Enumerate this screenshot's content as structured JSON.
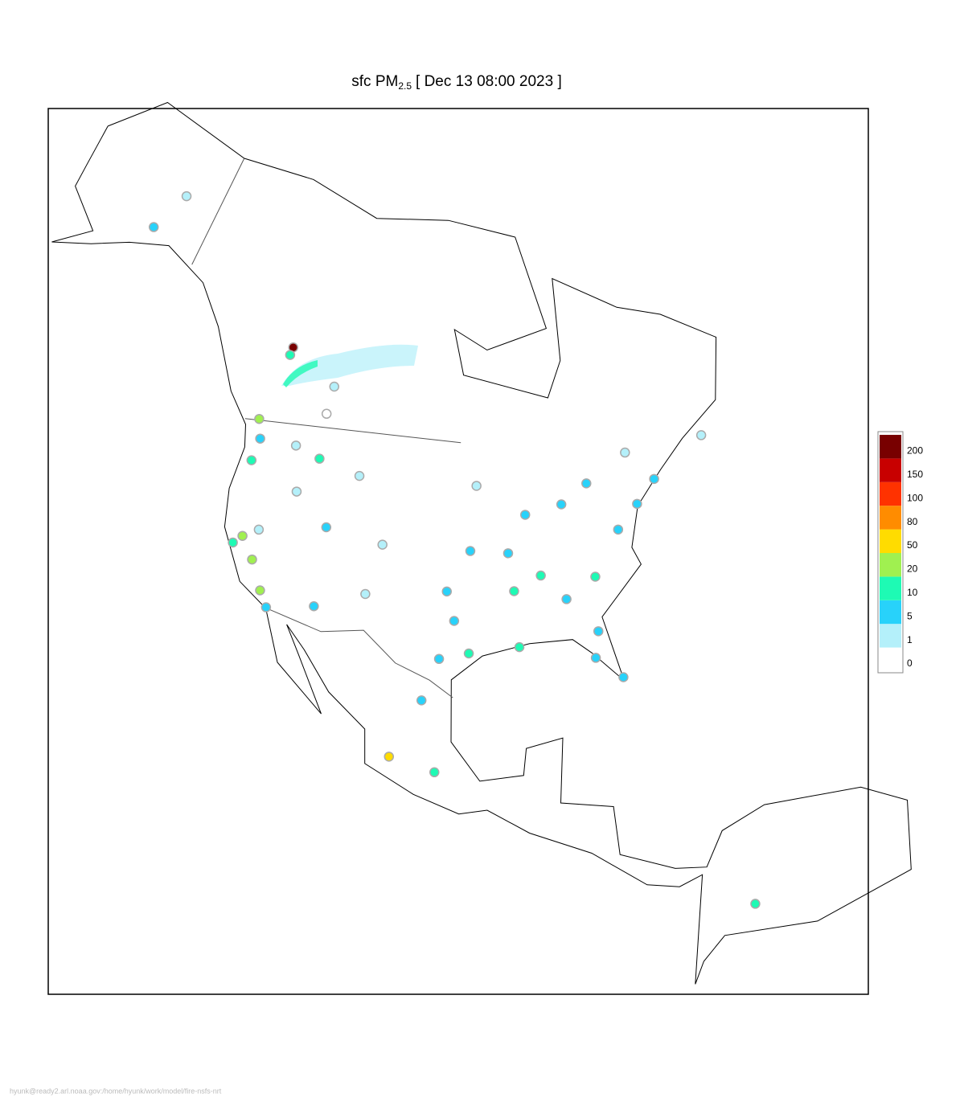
{
  "map": {
    "title": {
      "prefix": "sfc PM",
      "subscript": "2.5",
      "suffix": "[ Dec 13 08:00 2023 ]"
    },
    "legend": {
      "levels": [
        0,
        1,
        5,
        10,
        20,
        50,
        80,
        100,
        150,
        200
      ],
      "colors": [
        "#ffffff",
        "#b4f0fa",
        "#28d2fa",
        "#1efab4",
        "#a0f050",
        "#ffdc00",
        "#ff8c00",
        "#ff3200",
        "#c80000",
        "#780000"
      ]
    },
    "stations": [
      {
        "lon": -122.3,
        "lat": 47.6,
        "value": 8
      },
      {
        "lon": -122.7,
        "lat": 45.5,
        "value": 12
      },
      {
        "lon": -122.4,
        "lat": 37.8,
        "value": 18
      },
      {
        "lon": -121.5,
        "lat": 38.6,
        "value": 22
      },
      {
        "lon": -118.2,
        "lat": 34.1,
        "value": 25
      },
      {
        "lon": -117.2,
        "lat": 32.7,
        "value": 8
      },
      {
        "lon": -119.8,
        "lat": 36.7,
        "value": 22
      },
      {
        "lon": -119.8,
        "lat": 39.5,
        "value": 4
      },
      {
        "lon": -116.2,
        "lat": 43.6,
        "value": 4
      },
      {
        "lon": -111.9,
        "lat": 40.8,
        "value": 6
      },
      {
        "lon": -112.1,
        "lat": 33.5,
        "value": 6
      },
      {
        "lon": -105.0,
        "lat": 39.7,
        "value": 3
      },
      {
        "lon": -106.6,
        "lat": 35.1,
        "value": 1.5
      },
      {
        "lon": -117.4,
        "lat": 47.7,
        "value": 3
      },
      {
        "lon": -114.0,
        "lat": 46.9,
        "value": 12
      },
      {
        "lon": -108.5,
        "lat": 45.8,
        "value": 2
      },
      {
        "lon": -114.0,
        "lat": 51.0,
        "value": 0.5
      },
      {
        "lon": -113.5,
        "lat": 53.5,
        "value": 3
      },
      {
        "lon": -123.1,
        "lat": 49.3,
        "value": 20
      },
      {
        "lon": -120.8,
        "lat": 56.2,
        "value": 200
      },
      {
        "lon": -121.0,
        "lat": 55.5,
        "value": 15
      },
      {
        "lon": -96.8,
        "lat": 32.8,
        "value": 7
      },
      {
        "lon": -95.4,
        "lat": 29.8,
        "value": 15
      },
      {
        "lon": -98.5,
        "lat": 29.4,
        "value": 6
      },
      {
        "lon": -90.1,
        "lat": 30.0,
        "value": 14
      },
      {
        "lon": -84.4,
        "lat": 33.7,
        "value": 9
      },
      {
        "lon": -80.2,
        "lat": 25.8,
        "value": 6
      },
      {
        "lon": -82.5,
        "lat": 28.0,
        "value": 7
      },
      {
        "lon": -81.7,
        "lat": 30.3,
        "value": 6
      },
      {
        "lon": -80.8,
        "lat": 35.2,
        "value": 12
      },
      {
        "lon": -77.0,
        "lat": 38.9,
        "value": 7
      },
      {
        "lon": -74.0,
        "lat": 40.7,
        "value": 6
      },
      {
        "lon": -71.1,
        "lat": 42.4,
        "value": 5
      },
      {
        "lon": -87.6,
        "lat": 41.9,
        "value": 7
      },
      {
        "lon": -83.0,
        "lat": 42.3,
        "value": 6
      },
      {
        "lon": -93.3,
        "lat": 45.0,
        "value": 2
      },
      {
        "lon": -94.6,
        "lat": 39.1,
        "value": 8
      },
      {
        "lon": -90.2,
        "lat": 38.6,
        "value": 8
      },
      {
        "lon": -90.0,
        "lat": 35.1,
        "value": 12
      },
      {
        "lon": -86.8,
        "lat": 36.2,
        "value": 11
      },
      {
        "lon": -97.5,
        "lat": 35.5,
        "value": 7
      },
      {
        "lon": -73.6,
        "lat": 45.5,
        "value": 4
      },
      {
        "lon": -79.4,
        "lat": 43.7,
        "value": 6
      },
      {
        "lon": -63.6,
        "lat": 44.6,
        "value": 2
      },
      {
        "lon": -99.1,
        "lat": 19.4,
        "value": 15
      },
      {
        "lon": -103.3,
        "lat": 20.7,
        "value": 55
      },
      {
        "lon": -100.3,
        "lat": 25.7,
        "value": 6
      },
      {
        "lon": -149.9,
        "lat": 61.2,
        "value": 5
      },
      {
        "lon": -147.7,
        "lat": 64.8,
        "value": 2
      },
      {
        "lon": -74.1,
        "lat": 4.7,
        "value": 12
      }
    ],
    "footer": "hyunk@ready2.arl.noaa.gov:/home/hyunk/work/model/fire-nsfs-nrt"
  }
}
